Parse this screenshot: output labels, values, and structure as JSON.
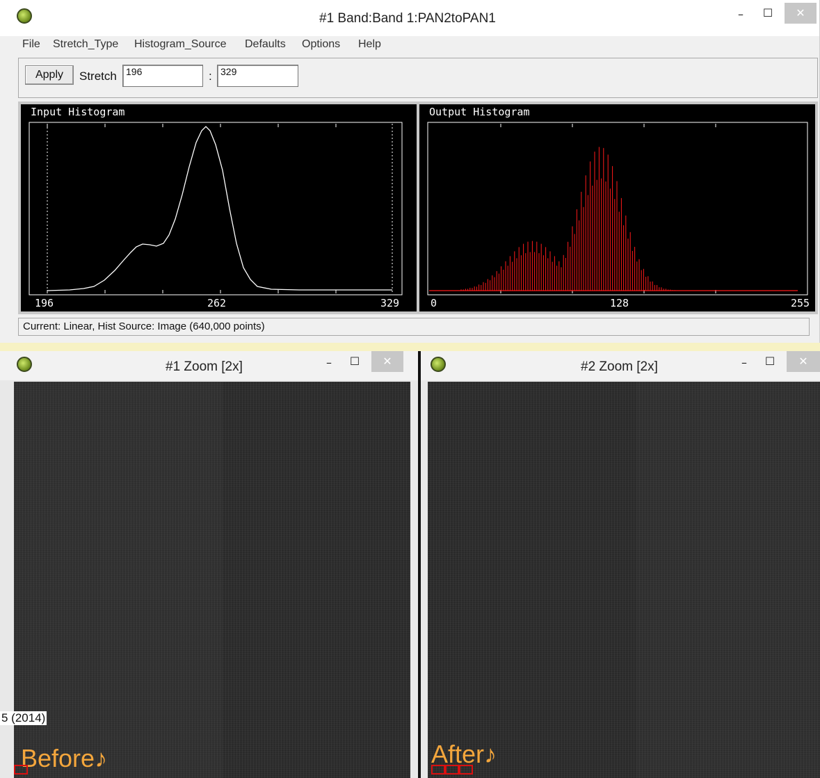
{
  "main_window": {
    "title": "#1 Band:Band 1:PAN2toPAN1",
    "minimize": "–",
    "maximize": "☐",
    "close": "✕"
  },
  "menu": [
    "File",
    "Stretch_Type",
    "Histogram_Source",
    "Defaults",
    "Options",
    "Help"
  ],
  "toolbar": {
    "apply_label": "Apply",
    "stretch_label": "Stretch",
    "stretch_min": "196",
    "separator": ":",
    "stretch_max": "329"
  },
  "input_histogram": {
    "title": "Input Histogram",
    "ticks": [
      "196",
      "262",
      "329"
    ],
    "line_color": "#ffffff"
  },
  "output_histogram": {
    "title": "Output Histogram",
    "ticks": [
      "0",
      "128",
      "255"
    ],
    "line_color": "#ff1a1a"
  },
  "status": "Current: Linear, Hist Source: Image (640,000 points)",
  "zoom1": {
    "title": "#1 Zoom [2x]",
    "minimize": "–",
    "maximize": "☐",
    "close": "✕"
  },
  "zoom2": {
    "title": "#2 Zoom [2x]",
    "minimize": "–",
    "maximize": "☐",
    "close": "✕"
  },
  "overlay": {
    "before": "Before♪",
    "after": "After♪",
    "citation": "5 (2014)"
  }
}
